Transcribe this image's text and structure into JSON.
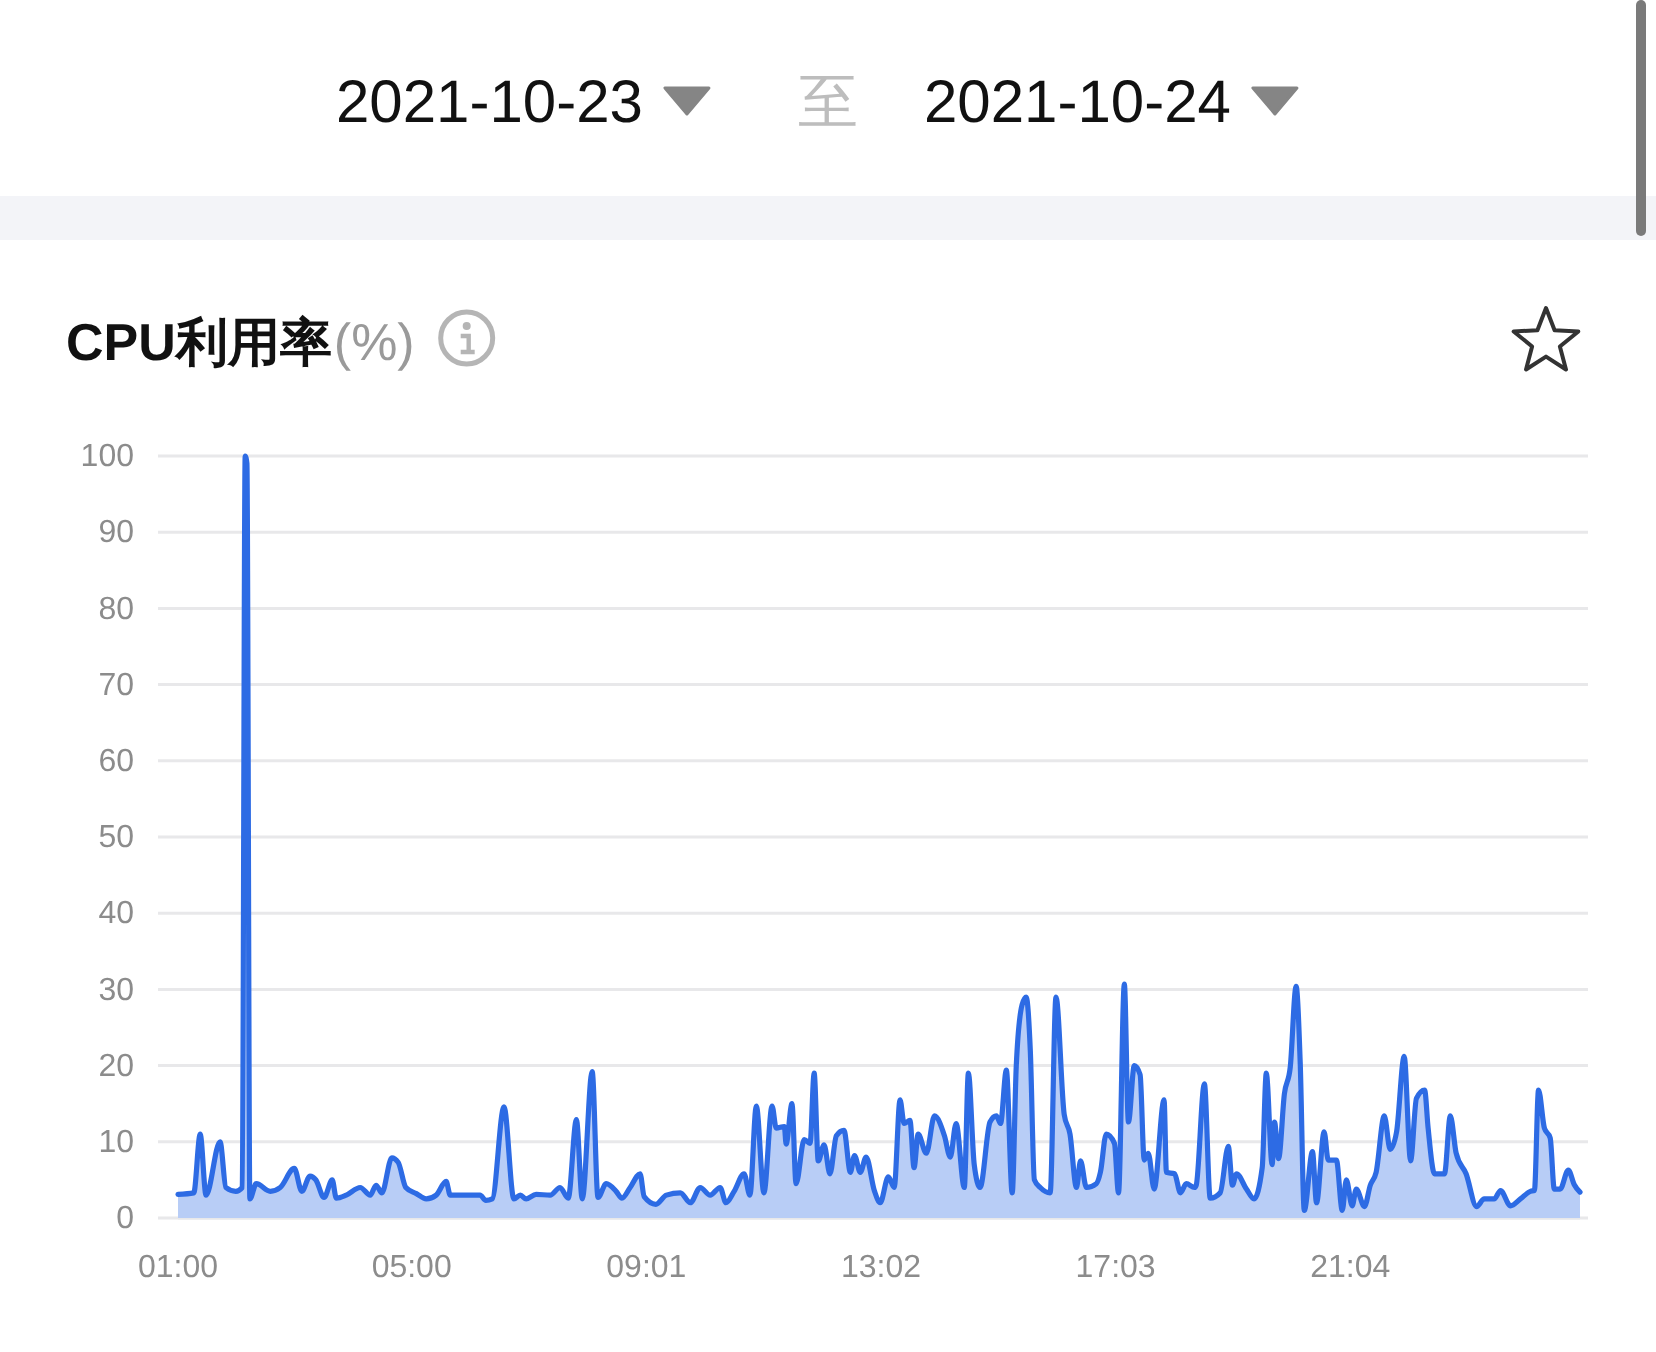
{
  "chart_data": {
    "type": "area",
    "title": "CPU利用率",
    "ylabel": "(%)",
    "annotations": [
      "2021-10-23",
      "至",
      "2021-10-24"
    ],
    "color": "#2d6be4",
    "x": [
      1,
      1.27,
      1.38,
      1.48,
      1.72,
      1.82,
      1.99,
      2.1,
      2.15,
      2.18,
      2.23,
      2.34,
      2.58,
      2.75,
      2.99,
      3.12,
      3.26,
      3.36,
      3.5,
      3.64,
      3.71,
      3.88,
      4.12,
      4.29,
      4.39,
      4.49,
      4.66,
      4.77,
      4.9,
      5.08,
      5.25,
      5.42,
      5.59,
      5.66,
      5.9,
      6.17,
      6.27,
      6.38,
      6.58,
      6.75,
      6.86,
      6.96,
      7.13,
      7.37,
      7.54,
      7.68,
      7.82,
      7.92,
      8.09,
      8.19,
      8.33,
      8.5,
      8.6,
      8.74,
      8.91,
      8.98,
      9.18,
      9.36,
      9.6,
      9.77,
      9.94,
      10.11,
      10.28,
      10.38,
      10.52,
      10.69,
      10.79,
      10.9,
      11.03,
      11.17,
      11.24,
      11.38,
      11.41,
      11.51,
      11.58,
      11.72,
      11.82,
      11.89,
      11.96,
      12.06,
      12.16,
      12.27,
      12.4,
      12.51,
      12.58,
      12.68,
      12.78,
      12.92,
      13.02,
      13.16,
      13.26,
      13.36,
      13.43,
      13.53,
      13.6,
      13.67,
      13.81,
      13.95,
      14.12,
      14.22,
      14.32,
      14.46,
      14.53,
      14.63,
      14.73,
      14.9,
      15.01,
      15.08,
      15.18,
      15.28,
      15.35,
      15.45,
      15.52,
      15.59,
      15.66,
      15.76,
      15.93,
      16.03,
      16.17,
      16.27,
      16.38,
      16.45,
      16.55,
      16.72,
      16.79,
      16.89,
      17.03,
      17.1,
      17.2,
      17.27,
      17.37,
      17.47,
      17.54,
      17.61,
      17.71,
      17.88,
      17.92,
      18.06,
      18.16,
      18.26,
      18.4,
      18.43,
      18.57,
      18.67,
      18.84,
      18.98,
      19.05,
      19.12,
      19.29,
      19.42,
      19.56,
      19.63,
      19.73,
      19.77,
      19.84,
      19.94,
      20.04,
      20.14,
      20.21,
      20.28,
      20.42,
      20.49,
      20.62,
      20.69,
      20.83,
      20.93,
      21.0,
      21.1,
      21.17,
      21.31,
      21.41,
      21.51,
      21.65,
      21.75,
      21.86,
      21.99,
      22.1,
      22.2,
      22.34,
      22.4,
      22.51,
      22.68,
      22.78,
      22.88,
      23.05,
      23.23,
      23.36,
      23.53,
      23.64,
      23.81,
      23.98,
      24.15,
      24.22,
      24.29,
      24.39,
      24.49,
      24.56,
      24.66,
      24.8,
      24.9,
      25
    ],
    "values": [
      3.1,
      3.3,
      11,
      3,
      10,
      4,
      3.5,
      4,
      100,
      99,
      2.5,
      4.5,
      3.5,
      4,
      6.5,
      3.5,
      5.5,
      5,
      2.7,
      5,
      2.6,
      3,
      4,
      3,
      4.3,
      3.3,
      7.9,
      7.3,
      4,
      3.2,
      2.5,
      3,
      4.8,
      3,
      3,
      3,
      2.3,
      2.5,
      14.6,
      2.5,
      3,
      2.5,
      3.1,
      3,
      4,
      2.6,
      12.9,
      2.5,
      19.2,
      2.7,
      4.5,
      3.5,
      2.6,
      4,
      5.8,
      2.8,
      1.8,
      3,
      3.3,
      2,
      4,
      3,
      4,
      2,
      3.5,
      5.8,
      3,
      14.7,
      3.3,
      14.7,
      11.8,
      12,
      9.7,
      15,
      4.5,
      10.3,
      9.8,
      19,
      7.5,
      9.6,
      5.8,
      10.8,
      11.5,
      6,
      8.2,
      6,
      8,
      3.6,
      2,
      5.4,
      4,
      15.5,
      12.4,
      12.8,
      6.6,
      11,
      8.5,
      13.4,
      10.8,
      8,
      12.4,
      4,
      19,
      7,
      4,
      12.6,
      13.4,
      12.4,
      19.4,
      3.3,
      20,
      28,
      29,
      22,
      5,
      4,
      3.3,
      29,
      13.6,
      11,
      4,
      7.5,
      4,
      4.5,
      6,
      11,
      9.8,
      3.3,
      30.7,
      12.6,
      20,
      18.8,
      7.6,
      8.5,
      3.8,
      15.5,
      6,
      5.8,
      3.3,
      4.5,
      4,
      4.3,
      17.6,
      2.6,
      3.3,
      9.4,
      4.3,
      5.8,
      3.8,
      2.5,
      6.6,
      19,
      7,
      12.6,
      7.8,
      16.3,
      19.8,
      30.4,
      20.5,
      1,
      8.7,
      2,
      11.3,
      7.6,
      7.6,
      1,
      5,
      1.6,
      3.8,
      1.5,
      4.3,
      6,
      13.4,
      9,
      11.3,
      21.2,
      7.5,
      15.7,
      16.8,
      11.8,
      5.8,
      5.8,
      13.4,
      8.5,
      5.8,
      1.5,
      2.5,
      2.5,
      3.6,
      1.6,
      2.5,
      3.5,
      3.6,
      16.8,
      11.8,
      10.5,
      3.8,
      3.8,
      6.3,
      4.4,
      3.4
    ],
    "xlim": [
      1,
      25
    ],
    "xticks": [
      {
        "value": 1,
        "label": "01:00"
      },
      {
        "value": 5,
        "label": "05:00"
      },
      {
        "value": 9.017,
        "label": "09:01"
      },
      {
        "value": 13.033,
        "label": "13:02"
      },
      {
        "value": 17.05,
        "label": "17:03"
      },
      {
        "value": 21.067,
        "label": "21:04"
      }
    ],
    "ylim": [
      0,
      100
    ],
    "yticks": [
      0,
      10,
      20,
      30,
      40,
      50,
      60,
      70,
      80,
      90,
      100
    ],
    "grid": "y"
  }
}
